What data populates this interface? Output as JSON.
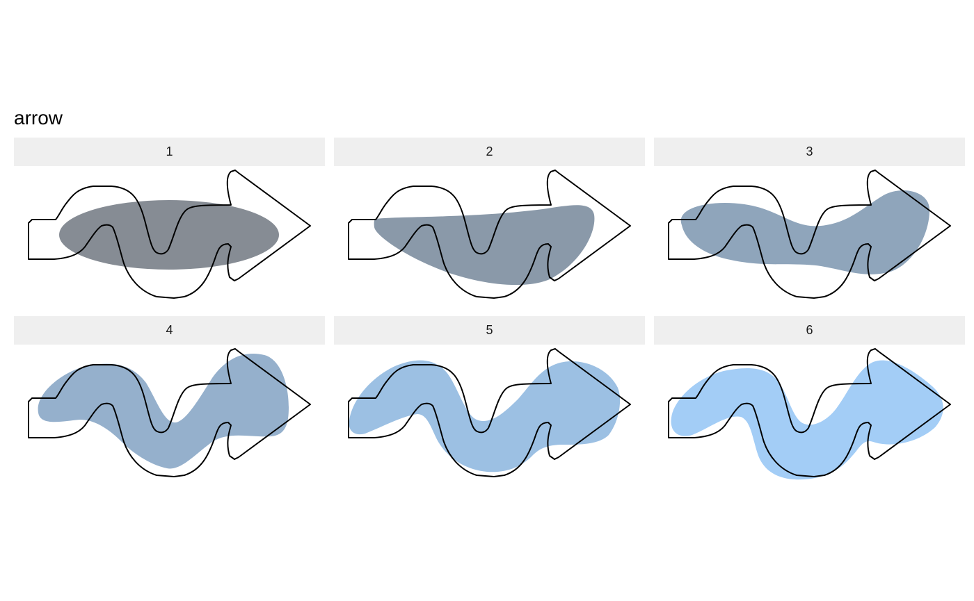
{
  "title": "arrow",
  "panels": [
    {
      "label": "1",
      "fill": "#868c94"
    },
    {
      "label": "2",
      "fill": "#8a99a9"
    },
    {
      "label": "3",
      "fill": "#8fa5bb"
    },
    {
      "label": "4",
      "fill": "#95b0cc"
    },
    {
      "label": "5",
      "fill": "#9cc0e3"
    },
    {
      "label": "6",
      "fill": "#a3cdf6"
    }
  ],
  "colors": {
    "outline": "#000000",
    "strip_background": "#efefef"
  }
}
